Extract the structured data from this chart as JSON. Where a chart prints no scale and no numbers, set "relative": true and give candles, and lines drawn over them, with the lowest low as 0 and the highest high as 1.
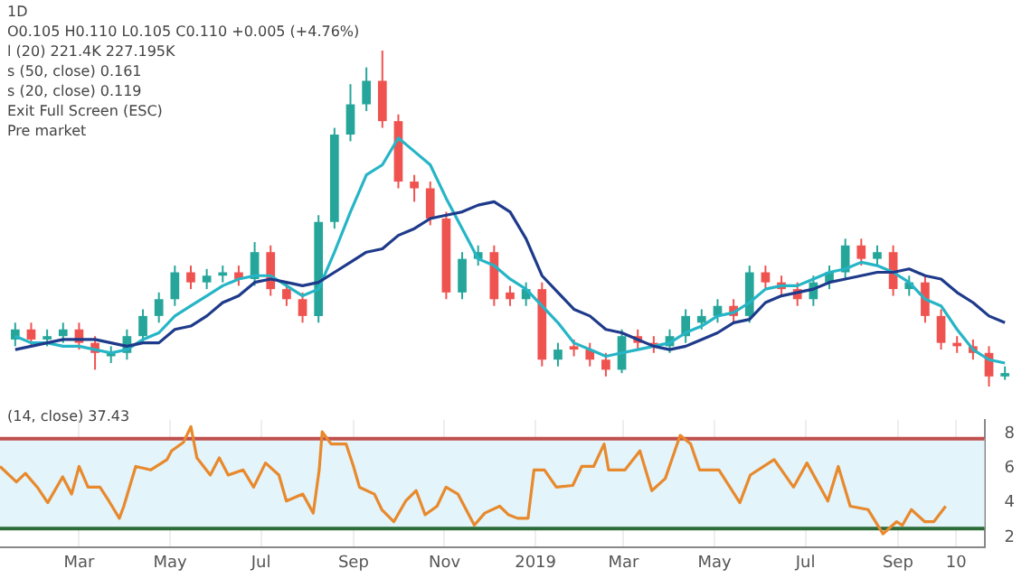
{
  "chart_data": [
    {
      "type": "candlestick",
      "title": "1D",
      "relative": true,
      "annotations": [
        "O0.105 H0.110 L0.105 C0.110 +0.005 (+4.76%)",
        "l (20) 221.4K 227.195K",
        "s (50, close) 0.161",
        "s (20, close) 0.119",
        "Exit Full Screen (ESC)",
        "Pre market"
      ],
      "categories": [
        null,
        null,
        null,
        null,
        null,
        null,
        null,
        null,
        null,
        null,
        null,
        null,
        null,
        null,
        null,
        null,
        null,
        null,
        null,
        null,
        null,
        null,
        null,
        null,
        null,
        null,
        null,
        null,
        null,
        null,
        null,
        null,
        null,
        null,
        null,
        null,
        null,
        null,
        null,
        null,
        null,
        null,
        null,
        null,
        null,
        null,
        null,
        null,
        null,
        null,
        null,
        null,
        null,
        null,
        null,
        null,
        null,
        null,
        null,
        null,
        null,
        null,
        null
      ],
      "ohlc": [
        [
          0.14,
          0.19,
          0.12,
          0.17
        ],
        [
          0.17,
          0.19,
          0.12,
          0.14
        ],
        [
          0.14,
          0.17,
          0.12,
          0.15
        ],
        [
          0.15,
          0.19,
          0.13,
          0.17
        ],
        [
          0.17,
          0.19,
          0.11,
          0.13
        ],
        [
          0.13,
          0.15,
          0.05,
          0.1
        ],
        [
          0.09,
          0.12,
          0.07,
          0.1
        ],
        [
          0.1,
          0.17,
          0.08,
          0.15
        ],
        [
          0.15,
          0.23,
          0.13,
          0.21
        ],
        [
          0.21,
          0.28,
          0.19,
          0.26
        ],
        [
          0.26,
          0.36,
          0.24,
          0.34
        ],
        [
          0.34,
          0.36,
          0.29,
          0.31
        ],
        [
          0.31,
          0.35,
          0.29,
          0.33
        ],
        [
          0.33,
          0.36,
          0.31,
          0.34
        ],
        [
          0.34,
          0.36,
          0.3,
          0.32
        ],
        [
          0.32,
          0.43,
          0.3,
          0.4
        ],
        [
          0.4,
          0.42,
          0.27,
          0.29
        ],
        [
          0.29,
          0.31,
          0.24,
          0.26
        ],
        [
          0.26,
          0.28,
          0.19,
          0.21
        ],
        [
          0.21,
          0.51,
          0.19,
          0.49
        ],
        [
          0.49,
          0.77,
          0.47,
          0.75
        ],
        [
          0.75,
          0.9,
          0.73,
          0.84
        ],
        [
          0.84,
          0.95,
          0.82,
          0.91
        ],
        [
          0.91,
          1.0,
          0.77,
          0.79
        ],
        [
          0.79,
          0.81,
          0.59,
          0.61
        ],
        [
          0.61,
          0.63,
          0.55,
          0.59
        ],
        [
          0.59,
          0.61,
          0.48,
          0.5
        ],
        [
          0.5,
          0.52,
          0.26,
          0.28
        ],
        [
          0.28,
          0.4,
          0.26,
          0.38
        ],
        [
          0.38,
          0.42,
          0.36,
          0.4
        ],
        [
          0.4,
          0.42,
          0.24,
          0.26
        ],
        [
          0.28,
          0.3,
          0.24,
          0.26
        ],
        [
          0.26,
          0.31,
          0.24,
          0.29
        ],
        [
          0.29,
          0.31,
          0.06,
          0.08
        ],
        [
          0.08,
          0.13,
          0.06,
          0.11
        ],
        [
          0.12,
          0.14,
          0.09,
          0.11
        ],
        [
          0.11,
          0.13,
          0.06,
          0.08
        ],
        [
          0.08,
          0.1,
          0.03,
          0.05
        ],
        [
          0.05,
          0.17,
          0.04,
          0.15
        ],
        [
          0.15,
          0.17,
          0.11,
          0.13
        ],
        [
          0.13,
          0.15,
          0.1,
          0.12
        ],
        [
          0.12,
          0.17,
          0.1,
          0.15
        ],
        [
          0.15,
          0.23,
          0.13,
          0.21
        ],
        [
          0.19,
          0.23,
          0.17,
          0.21
        ],
        [
          0.21,
          0.26,
          0.19,
          0.24
        ],
        [
          0.24,
          0.26,
          0.19,
          0.21
        ],
        [
          0.21,
          0.36,
          0.19,
          0.34
        ],
        [
          0.34,
          0.36,
          0.29,
          0.31
        ],
        [
          0.31,
          0.33,
          0.27,
          0.29
        ],
        [
          0.29,
          0.31,
          0.24,
          0.26
        ],
        [
          0.26,
          0.33,
          0.24,
          0.31
        ],
        [
          0.31,
          0.36,
          0.29,
          0.34
        ],
        [
          0.34,
          0.44,
          0.32,
          0.42
        ],
        [
          0.42,
          0.44,
          0.36,
          0.38
        ],
        [
          0.38,
          0.42,
          0.36,
          0.4
        ],
        [
          0.4,
          0.42,
          0.27,
          0.29
        ],
        [
          0.29,
          0.33,
          0.27,
          0.31
        ],
        [
          0.31,
          0.33,
          0.19,
          0.21
        ],
        [
          0.21,
          0.23,
          0.11,
          0.13
        ],
        [
          0.13,
          0.15,
          0.1,
          0.12
        ],
        [
          0.12,
          0.14,
          0.08,
          0.1
        ],
        [
          0.1,
          0.12,
          0.0,
          0.03
        ],
        [
          0.03,
          0.06,
          0.02,
          0.04
        ]
      ],
      "marker": "none",
      "line_style": "solid",
      "series": [
        {
          "type": "line",
          "color": "#1e3a8a",
          "values": [
            0.11,
            0.12,
            0.13,
            0.14,
            0.14,
            0.14,
            0.13,
            0.12,
            0.13,
            0.13,
            0.17,
            0.18,
            0.21,
            0.25,
            0.27,
            0.31,
            0.32,
            0.31,
            0.3,
            0.31,
            0.34,
            0.37,
            0.4,
            0.41,
            0.45,
            0.47,
            0.5,
            0.51,
            0.52,
            0.54,
            0.55,
            0.52,
            0.44,
            0.33,
            0.28,
            0.23,
            0.21,
            0.17,
            0.16,
            0.14,
            0.12,
            0.11,
            0.12,
            0.14,
            0.16,
            0.19,
            0.2,
            0.25,
            0.27,
            0.28,
            0.29,
            0.31,
            0.32,
            0.33,
            0.34,
            0.34,
            0.35,
            0.33,
            0.32,
            0.28,
            0.25,
            0.21,
            0.19
          ]
        },
        {
          "type": "line",
          "color": "#26b5c6",
          "values": [
            0.15,
            0.13,
            0.13,
            0.12,
            0.12,
            0.11,
            0.1,
            0.11,
            0.14,
            0.16,
            0.21,
            0.24,
            0.27,
            0.3,
            0.32,
            0.33,
            0.33,
            0.3,
            0.27,
            0.29,
            0.4,
            0.52,
            0.63,
            0.66,
            0.74,
            0.7,
            0.66,
            0.56,
            0.47,
            0.38,
            0.36,
            0.32,
            0.29,
            0.24,
            0.19,
            0.13,
            0.11,
            0.09,
            0.1,
            0.11,
            0.12,
            0.13,
            0.16,
            0.18,
            0.21,
            0.22,
            0.25,
            0.29,
            0.3,
            0.3,
            0.32,
            0.34,
            0.35,
            0.37,
            0.36,
            0.34,
            0.31,
            0.26,
            0.24,
            0.17,
            0.11,
            0.08,
            0.07
          ]
        }
      ]
    },
    {
      "type": "line",
      "grid": "x",
      "marker": "none",
      "line_style": "solid",
      "annotations": [
        "(14, close) 37.43"
      ],
      "xlim": [
        "2018-01-07",
        "2019-10-29"
      ],
      "xticks": [
        {
          "value": "2018-03-01",
          "label": "Mar"
        },
        {
          "value": "2018-05-01",
          "label": "May"
        },
        {
          "value": "2018-07-01",
          "label": "Jul"
        },
        {
          "value": "2018-09-01",
          "label": "Sep"
        },
        {
          "value": "2018-11-01",
          "label": "Nov"
        },
        {
          "value": "2019-01-01",
          "label": "2019"
        },
        {
          "value": "2019-03-01",
          "label": "Mar"
        },
        {
          "value": "2019-05-01",
          "label": "May"
        },
        {
          "value": "2019-07-01",
          "label": "Jul"
        },
        {
          "value": "2019-09-01",
          "label": "Sep"
        },
        {
          "value": "2019-10-10",
          "label": "10"
        }
      ],
      "ylim": [
        1.4,
        8.8
      ],
      "yticks": [
        2,
        4,
        6,
        8
      ],
      "ref_lines": [
        {
          "axis": "y",
          "value": 7.7,
          "color": "#c0504d"
        },
        {
          "axis": "y",
          "value": 2.5,
          "color": "#2e6b3a"
        }
      ],
      "bands": [
        {
          "axis": "y",
          "from": 2.5,
          "to": 7.7,
          "color": "#e3f4fb"
        }
      ],
      "series": [
        {
          "color": "#e8892c",
          "x": [
            "2018-01-07",
            "2018-01-18",
            "2018-01-24",
            "2018-02-01",
            "2018-02-08",
            "2018-02-18",
            "2018-02-24",
            "2018-03-01",
            "2018-03-07",
            "2018-03-15",
            "2018-03-21",
            "2018-03-28",
            "2018-03-31",
            "2018-04-08",
            "2018-04-18",
            "2018-04-29",
            "2018-05-02",
            "2018-05-10",
            "2018-05-15",
            "2018-05-19",
            "2018-05-28",
            "2018-06-03",
            "2018-06-09",
            "2018-06-19",
            "2018-06-26",
            "2018-07-04",
            "2018-07-13",
            "2018-07-18",
            "2018-07-29",
            "2018-08-05",
            "2018-08-09",
            "2018-08-11",
            "2018-08-17",
            "2018-08-27",
            "2018-09-01",
            "2018-09-05",
            "2018-09-15",
            "2018-09-20",
            "2018-09-28",
            "2018-10-06",
            "2018-10-13",
            "2018-10-19",
            "2018-10-27",
            "2018-11-02",
            "2018-11-10",
            "2018-11-21",
            "2018-11-28",
            "2018-12-08",
            "2018-12-14",
            "2018-12-20",
            "2018-12-27",
            "2018-12-31",
            "2019-01-07",
            "2019-01-15",
            "2019-01-26",
            "2019-02-01",
            "2019-02-09",
            "2019-02-16",
            "2019-02-19",
            "2019-03-02",
            "2019-03-12",
            "2019-03-20",
            "2019-03-29",
            "2019-04-08",
            "2019-04-15",
            "2019-04-21",
            "2019-05-04",
            "2019-05-18",
            "2019-05-25",
            "2019-06-10",
            "2019-06-23",
            "2019-07-02",
            "2019-07-16",
            "2019-07-23",
            "2019-07-31",
            "2019-08-12",
            "2019-08-22",
            "2019-08-31",
            "2019-09-04",
            "2019-09-10",
            "2019-09-19",
            "2019-09-25",
            "2019-10-03"
          ],
          "values": [
            6.1,
            5.2,
            5.7,
            4.9,
            4.0,
            5.5,
            4.5,
            6.1,
            4.9,
            4.9,
            4.1,
            3.1,
            3.8,
            6.1,
            5.9,
            6.5,
            7.0,
            7.5,
            8.4,
            6.6,
            5.6,
            6.6,
            5.6,
            5.9,
            4.9,
            6.3,
            5.6,
            4.1,
            4.5,
            3.4,
            5.9,
            8.1,
            7.4,
            7.4,
            6.1,
            4.9,
            4.5,
            3.6,
            2.9,
            4.1,
            4.7,
            3.3,
            3.8,
            4.9,
            4.5,
            2.7,
            3.4,
            3.8,
            3.3,
            3.1,
            3.1,
            5.9,
            5.9,
            4.9,
            5.0,
            6.1,
            6.1,
            7.4,
            5.9,
            5.9,
            7.0,
            4.7,
            5.4,
            7.9,
            7.4,
            5.9,
            5.9,
            4.0,
            5.6,
            6.5,
            4.9,
            6.3,
            4.1,
            6.1,
            3.8,
            3.6,
            2.2,
            2.9,
            2.7,
            3.6,
            2.9,
            2.9,
            3.8
          ]
        }
      ]
    }
  ]
}
